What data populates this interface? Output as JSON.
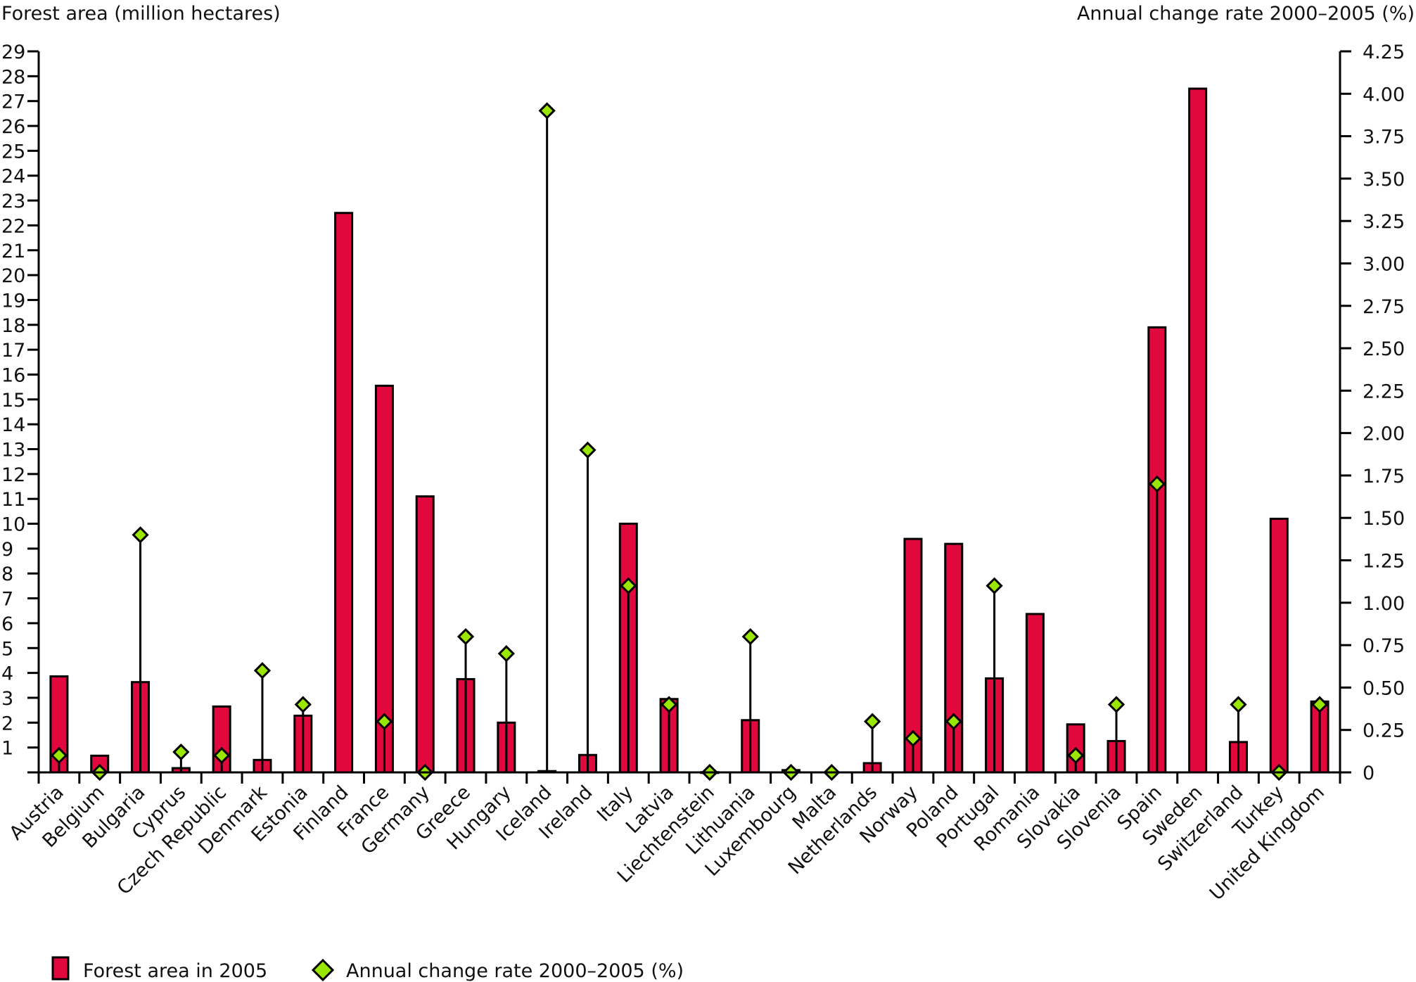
{
  "chart_data": {
    "type": "bar",
    "title": "",
    "left_axis_title": "Forest area (million hectares)",
    "right_axis_title": "Annual change rate 2000–2005 (%)",
    "ylim_left": [
      0,
      29
    ],
    "yticks_left": [
      1,
      2,
      3,
      4,
      5,
      6,
      7,
      8,
      9,
      10,
      11,
      12,
      13,
      14,
      15,
      16,
      17,
      18,
      19,
      20,
      21,
      22,
      23,
      24,
      25,
      26,
      27,
      28,
      29
    ],
    "ylim_right": [
      0,
      4.25
    ],
    "yticks_right": [
      "0",
      "0.25",
      "0.50",
      "0.75",
      "1.00",
      "1.25",
      "1.50",
      "1.75",
      "2.00",
      "2.25",
      "2.50",
      "2.75",
      "3.00",
      "3.25",
      "3.50",
      "3.75",
      "4.00",
      "4.25"
    ],
    "grid": false,
    "legend_position": "bottom-left",
    "categories": [
      "Austria",
      "Belgium",
      "Bulgaria",
      "Cyprus",
      "Czech Republic",
      "Denmark",
      "Estonia",
      "Finland",
      "France",
      "Germany",
      "Greece",
      "Hungary",
      "Iceland",
      "Ireland",
      "Italy",
      "Latvia",
      "Liechtenstein",
      "Lithuania",
      "Luxembourg",
      "Malta",
      "Netherlands",
      "Norway",
      "Poland",
      "Portugal",
      "Romania",
      "Slovakia",
      "Slovenia",
      "Spain",
      "Sweden",
      "Switzerland",
      "Turkey",
      "United Kingdom"
    ],
    "series": [
      {
        "name": "Forest area in 2005",
        "axis": "left",
        "kind": "bar",
        "color": "#E0083C",
        "values": [
          3.86,
          0.67,
          3.63,
          0.17,
          2.65,
          0.5,
          2.28,
          22.5,
          15.55,
          11.1,
          3.75,
          2.0,
          0.05,
          0.7,
          10.0,
          2.95,
          0.007,
          2.1,
          0.09,
          0.0,
          0.37,
          9.39,
          9.19,
          3.78,
          6.37,
          1.93,
          1.26,
          17.9,
          27.5,
          1.22,
          10.2,
          2.85
        ]
      },
      {
        "name": "Annual change rate 2000–2005 (%)",
        "axis": "right",
        "kind": "marker",
        "color": "#99E600",
        "values": [
          0.1,
          0.0,
          1.4,
          0.12,
          0.1,
          0.6,
          0.4,
          null,
          0.3,
          0.0,
          0.8,
          0.7,
          3.9,
          1.9,
          1.1,
          0.4,
          0.0,
          0.8,
          0.0,
          0.0,
          0.3,
          0.2,
          0.3,
          1.1,
          null,
          0.1,
          0.4,
          1.7,
          null,
          0.4,
          0.0,
          0.4
        ]
      }
    ]
  },
  "legend": {
    "items": [
      {
        "label": "Forest area in 2005"
      },
      {
        "label": "Annual change rate 2000–2005 (%)"
      }
    ]
  }
}
